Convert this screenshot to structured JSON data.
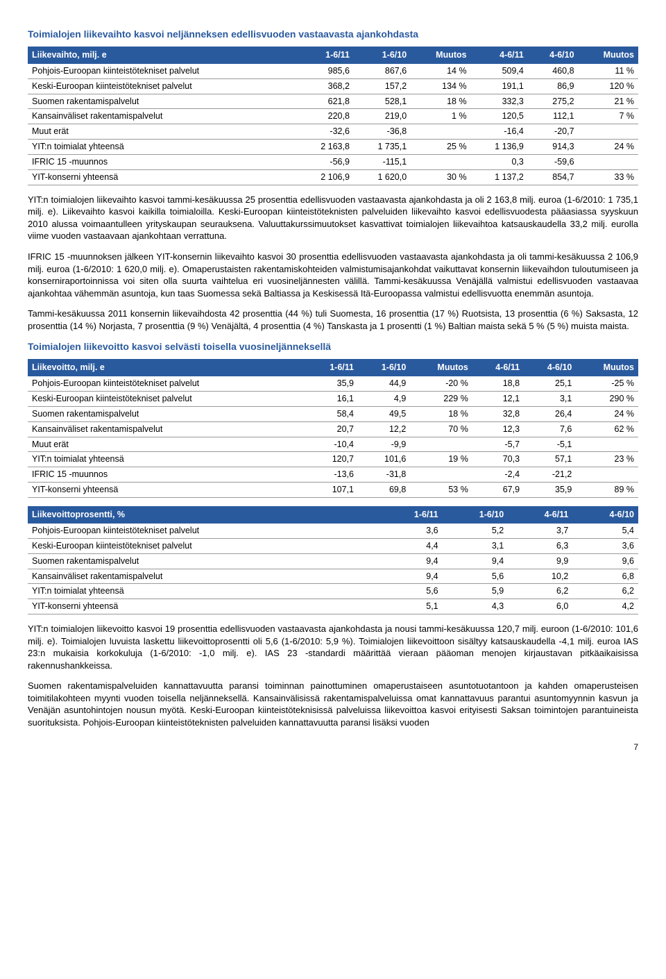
{
  "section1_title": "Toimialojen liikevaihto kasvoi neljänneksen edellisvuoden vastaavasta ajankohdasta",
  "table1": {
    "headers": [
      "Liikevaihto, milj. e",
      "1-6/11",
      "1-6/10",
      "Muutos",
      "4-6/11",
      "4-6/10",
      "Muutos"
    ],
    "rows": [
      [
        "Pohjois-Euroopan kiinteistötekniset palvelut",
        "985,6",
        "867,6",
        "14 %",
        "509,4",
        "460,8",
        "11 %"
      ],
      [
        "Keski-Euroopan kiinteistötekniset palvelut",
        "368,2",
        "157,2",
        "134 %",
        "191,1",
        "86,9",
        "120 %"
      ],
      [
        "Suomen rakentamispalvelut",
        "621,8",
        "528,1",
        "18 %",
        "332,3",
        "275,2",
        "21 %"
      ],
      [
        "Kansainväliset rakentamispalvelut",
        "220,8",
        "219,0",
        "1 %",
        "120,5",
        "112,1",
        "7 %"
      ],
      [
        "Muut erät",
        "-32,6",
        "-36,8",
        "",
        "-16,4",
        "-20,7",
        ""
      ],
      [
        "YIT:n toimialat yhteensä",
        "2 163,8",
        "1 735,1",
        "25 %",
        "1 136,9",
        "914,3",
        "24 %"
      ],
      [
        "IFRIC 15 -muunnos",
        "-56,9",
        "-115,1",
        "",
        "0,3",
        "-59,6",
        ""
      ],
      [
        "YIT-konserni yhteensä",
        "2 106,9",
        "1 620,0",
        "30 %",
        "1 137,2",
        "854,7",
        "33 %"
      ]
    ]
  },
  "para1": "YIT:n toimialojen liikevaihto kasvoi tammi-kesäkuussa 25 prosenttia edellisvuoden vastaavasta ajankohdasta ja oli 2 163,8 milj. euroa (1-6/2010: 1 735,1 milj. e). Liikevaihto kasvoi kaikilla toimialoilla. Keski-Euroopan kiinteistöteknisten palveluiden liikevaihto kasvoi edellisvuodesta pääasiassa syyskuun 2010 alussa voimaantulleen yrityskaupan seurauksena. Valuuttakurssimuutokset kasvattivat toimialojen liikevaihtoa katsauskaudella 33,2 milj. eurolla viime vuoden vastaavaan ajankohtaan verrattuna.",
  "para2": "IFRIC 15 -muunnoksen jälkeen YIT-konsernin liikevaihto kasvoi 30 prosenttia edellisvuoden vastaavasta ajankohdasta ja oli tammi-kesäkuussa 2 106,9 milj. euroa (1-6/2010: 1 620,0 milj. e). Omaperustaisten rakentamiskohteiden valmistumisajankohdat vaikuttavat konsernin liikevaihdon tuloutumiseen ja konserniraportoinnissa voi siten olla suurta vaihtelua eri vuosineljännesten välillä. Tammi-kesäkuussa Venäjällä valmistui edellisvuoden vastaavaa ajankohtaa vähemmän asuntoja, kun taas Suomessa sekä Baltiassa ja Keskisessä Itä-Euroopassa valmistui edellisvuotta enemmän asuntoja.",
  "para3": "Tammi-kesäkuussa 2011 konsernin liikevaihdosta 42 prosenttia (44 %) tuli Suomesta, 16 prosenttia (17 %) Ruotsista, 13 prosenttia (6 %) Saksasta, 12 prosenttia (14 %) Norjasta, 7 prosenttia (9 %) Venäjältä, 4 prosenttia (4 %) Tanskasta ja 1 prosentti (1 %) Baltian maista sekä 5 % (5 %) muista maista.",
  "section2_title": "Toimialojen liikevoitto kasvoi selvästi toisella vuosineljänneksellä",
  "table2": {
    "headers": [
      "Liikevoitto, milj. e",
      "1-6/11",
      "1-6/10",
      "Muutos",
      "4-6/11",
      "4-6/10",
      "Muutos"
    ],
    "rows": [
      [
        "Pohjois-Euroopan kiinteistötekniset palvelut",
        "35,9",
        "44,9",
        "-20 %",
        "18,8",
        "25,1",
        "-25 %"
      ],
      [
        "Keski-Euroopan kiinteistötekniset palvelut",
        "16,1",
        "4,9",
        "229 %",
        "12,1",
        "3,1",
        "290 %"
      ],
      [
        "Suomen rakentamispalvelut",
        "58,4",
        "49,5",
        "18 %",
        "32,8",
        "26,4",
        "24 %"
      ],
      [
        "Kansainväliset rakentamispalvelut",
        "20,7",
        "12,2",
        "70 %",
        "12,3",
        "7,6",
        "62 %"
      ],
      [
        "Muut erät",
        "-10,4",
        "-9,9",
        "",
        "-5,7",
        "-5,1",
        ""
      ],
      [
        "YIT:n toimialat yhteensä",
        "120,7",
        "101,6",
        "19 %",
        "70,3",
        "57,1",
        "23 %"
      ],
      [
        "IFRIC 15 -muunnos",
        "-13,6",
        "-31,8",
        "",
        "-2,4",
        "-21,2",
        ""
      ],
      [
        "YIT-konserni yhteensä",
        "107,1",
        "69,8",
        "53 %",
        "67,9",
        "35,9",
        "89 %"
      ]
    ]
  },
  "table3": {
    "headers": [
      "Liikevoittoprosentti, %",
      "1-6/11",
      "1-6/10",
      "4-6/11",
      "4-6/10"
    ],
    "rows": [
      [
        "Pohjois-Euroopan kiinteistötekniset palvelut",
        "3,6",
        "5,2",
        "3,7",
        "5,4"
      ],
      [
        "Keski-Euroopan kiinteistötekniset palvelut",
        "4,4",
        "3,1",
        "6,3",
        "3,6"
      ],
      [
        "Suomen rakentamispalvelut",
        "9,4",
        "9,4",
        "9,9",
        "9,6"
      ],
      [
        "Kansainväliset rakentamispalvelut",
        "9,4",
        "5,6",
        "10,2",
        "6,8"
      ],
      [
        "YIT:n toimialat yhteensä",
        "5,6",
        "5,9",
        "6,2",
        "6,2"
      ],
      [
        "YIT-konserni yhteensä",
        "5,1",
        "4,3",
        "6,0",
        "4,2"
      ]
    ]
  },
  "para4": "YIT:n toimialojen liikevoitto kasvoi 19 prosenttia edellisvuoden vastaavasta ajankohdasta ja nousi tammi-kesäkuussa 120,7 milj. euroon (1-6/2010: 101,6 milj. e). Toimialojen luvuista laskettu liikevoittoprosentti oli 5,6 (1-6/2010: 5,9 %). Toimialojen liikevoittoon sisältyy katsauskaudella -4,1 milj. euroa IAS 23:n mukaisia korkokuluja (1-6/2010: -1,0 milj. e). IAS 23 -standardi määrittää vieraan pääoman menojen kirjaustavan pitkäaikaisissa rakennushankkeissa.",
  "para5": "Suomen rakentamispalveluiden kannattavuutta paransi toiminnan painottuminen omaperustaiseen asuntotuotantoon ja kahden omaperusteisen toimitilakohteen myynti vuoden toisella neljänneksellä. Kansainvälisissä rakentamispalveluissa omat kannattavuus parantui asuntomyynnin kasvun ja Venäjän asuntohintojen nousun myötä. Keski-Euroopan kiinteistöteknisissä palveluissa liikevoittoa kasvoi erityisesti Saksan toimintojen parantuineista suorituksista. Pohjois-Euroopan kiinteistöteknisten palveluiden kannattavuutta paransi lisäksi vuoden",
  "pagenum": "7"
}
